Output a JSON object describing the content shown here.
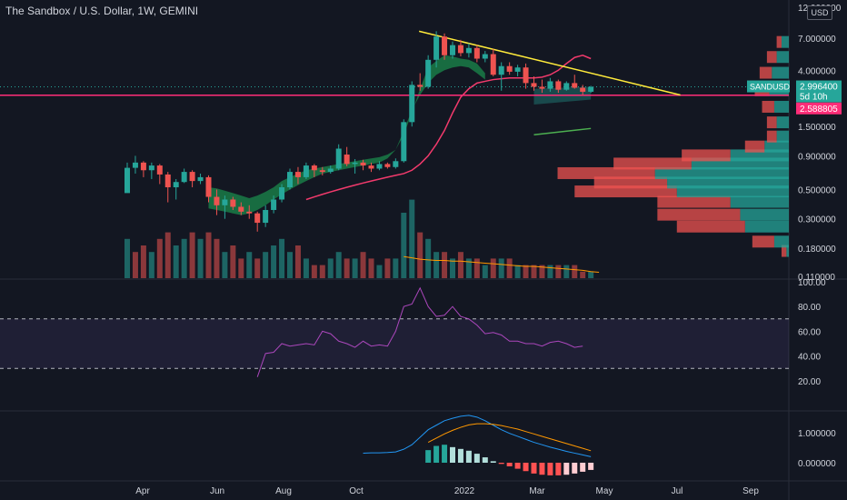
{
  "header": {
    "title": "The Sandbox / U.S. Dollar, 1W, GEMINI",
    "currency": "USD"
  },
  "colors": {
    "up": "#26a69a",
    "down": "#ef5350",
    "trendline": "#ffeb3b",
    "support": "#ff2d78",
    "ema_fast": "#f23a6c",
    "rsi": "#ab47bc",
    "macd": "#2196f3",
    "signal": "#ff9800"
  },
  "chart_data": [
    {
      "type": "candlestick",
      "scale": "log",
      "price_axis": {
        "ticks": [
          0.11,
          0.18,
          0.3,
          0.5,
          0.9,
          1.5,
          4.0,
          7.0
        ],
        "tick_labels": [
          "0.110000",
          "0.180000",
          "0.300000",
          "0.500000",
          "0.900000",
          "1.500000",
          "4.000000",
          "7.000000"
        ],
        "top_label": "12.000000"
      },
      "x_axis_labels": [
        "Apr",
        "Jun",
        "Aug",
        "Oct",
        "2022",
        "Mar",
        "May",
        "Jul",
        "Sep"
      ],
      "symbol_badge": {
        "label": "SANDUSD",
        "price": "2.996400",
        "countdown": "5d 10h"
      },
      "support_badge": "2.588805",
      "support_level": 2.588805,
      "candles": [
        [
          0.47,
          0.8,
          0.48,
          0.73
        ],
        [
          0.73,
          0.9,
          0.66,
          0.8
        ],
        [
          0.8,
          0.82,
          0.62,
          0.7
        ],
        [
          0.7,
          0.8,
          0.6,
          0.76
        ],
        [
          0.76,
          0.78,
          0.55,
          0.65
        ],
        [
          0.65,
          0.68,
          0.4,
          0.52
        ],
        [
          0.52,
          0.6,
          0.42,
          0.57
        ],
        [
          0.57,
          0.72,
          0.56,
          0.68
        ],
        [
          0.68,
          0.7,
          0.52,
          0.58
        ],
        [
          0.58,
          0.66,
          0.55,
          0.62
        ],
        [
          0.62,
          0.64,
          0.4,
          0.44
        ],
        [
          0.44,
          0.5,
          0.32,
          0.38
        ],
        [
          0.38,
          0.45,
          0.3,
          0.42
        ],
        [
          0.42,
          0.44,
          0.35,
          0.37
        ],
        [
          0.37,
          0.4,
          0.32,
          0.34
        ],
        [
          0.34,
          0.38,
          0.3,
          0.33
        ],
        [
          0.33,
          0.34,
          0.24,
          0.28
        ],
        [
          0.28,
          0.38,
          0.26,
          0.35
        ],
        [
          0.35,
          0.45,
          0.33,
          0.42
        ],
        [
          0.42,
          0.55,
          0.4,
          0.52
        ],
        [
          0.52,
          0.72,
          0.5,
          0.68
        ],
        [
          0.68,
          0.74,
          0.55,
          0.62
        ],
        [
          0.62,
          0.8,
          0.6,
          0.76
        ],
        [
          0.76,
          0.78,
          0.62,
          0.7
        ],
        [
          0.7,
          0.74,
          0.64,
          0.68
        ],
        [
          0.68,
          0.76,
          0.66,
          0.72
        ],
        [
          0.72,
          1.1,
          0.7,
          1.02
        ],
        [
          0.92,
          1.05,
          0.75,
          0.78
        ],
        [
          0.78,
          0.85,
          0.66,
          0.8
        ],
        [
          0.8,
          0.84,
          0.7,
          0.76
        ],
        [
          0.76,
          0.8,
          0.68,
          0.72
        ],
        [
          0.72,
          0.82,
          0.7,
          0.78
        ],
        [
          0.78,
          0.8,
          0.72,
          0.74
        ],
        [
          0.74,
          0.86,
          0.72,
          0.82
        ],
        [
          0.82,
          1.7,
          0.8,
          1.62
        ],
        [
          1.62,
          3.3,
          1.5,
          3.1
        ],
        [
          3.1,
          3.8,
          2.8,
          3.0
        ],
        [
          3.0,
          5.2,
          2.9,
          4.8
        ],
        [
          4.8,
          7.9,
          4.2,
          7.2
        ],
        [
          7.2,
          7.6,
          4.8,
          5.2
        ],
        [
          5.2,
          6.6,
          4.9,
          6.2
        ],
        [
          6.2,
          6.8,
          5.1,
          5.4
        ],
        [
          5.4,
          6.4,
          5.0,
          5.9
        ],
        [
          5.9,
          6.2,
          4.6,
          4.9
        ],
        [
          4.9,
          5.6,
          4.6,
          5.3
        ],
        [
          5.3,
          5.8,
          3.6,
          3.7
        ],
        [
          3.7,
          4.6,
          2.8,
          4.3
        ],
        [
          4.3,
          4.6,
          3.7,
          3.9
        ],
        [
          3.9,
          4.4,
          3.6,
          4.2
        ],
        [
          4.2,
          4.5,
          2.9,
          3.2
        ],
        [
          3.2,
          3.6,
          2.8,
          3.0
        ],
        [
          3.0,
          3.4,
          2.7,
          2.9
        ],
        [
          2.9,
          3.5,
          2.75,
          3.3
        ],
        [
          3.3,
          3.4,
          2.7,
          2.85
        ],
        [
          2.85,
          3.3,
          2.8,
          3.2
        ],
        [
          3.2,
          3.7,
          2.9,
          2.95
        ],
        [
          2.95,
          3.1,
          2.6,
          2.75
        ],
        [
          2.75,
          3.05,
          2.7,
          2.996
        ]
      ],
      "overlays": {
        "trendline": [
          [
            7.9,
            37
          ],
          [
            2.6,
            68
          ]
        ],
        "ema_fast": [
          0.42,
          0.44,
          0.46,
          0.48,
          0.5,
          0.52,
          0.54,
          0.56,
          0.58,
          0.6,
          0.62,
          0.64,
          0.66,
          0.7,
          0.78,
          0.9,
          1.1,
          1.4,
          1.9,
          2.5,
          2.9,
          3.2,
          3.3,
          3.4,
          3.45,
          3.5,
          3.5,
          3.5,
          3.5,
          3.55,
          3.7,
          4.0,
          4.5,
          5.0,
          5.2,
          4.9
        ],
        "ema_fast_start": 22,
        "ribbon_upper_start": 10,
        "ribbon_upper": [
          0.52,
          0.51,
          0.49,
          0.47,
          0.45,
          0.43,
          0.45,
          0.48,
          0.52,
          0.58,
          0.62,
          0.66,
          0.7,
          0.72,
          0.74,
          0.76,
          0.78,
          0.8,
          0.82,
          0.84,
          0.86,
          0.88,
          0.92,
          1.0,
          1.3,
          1.9,
          2.9,
          4.2,
          4.7,
          5.2,
          5.1,
          4.9,
          4.8,
          4.5,
          3.8
        ],
        "ribbon_lower": [
          0.36,
          0.35,
          0.34,
          0.33,
          0.32,
          0.33,
          0.35,
          0.38,
          0.42,
          0.46,
          0.5,
          0.54,
          0.58,
          0.62,
          0.66,
          0.68,
          0.7,
          0.72,
          0.74,
          0.76,
          0.78,
          0.8,
          0.86,
          1.0,
          1.4,
          2.0,
          2.6,
          3.2,
          3.7,
          4.0,
          4.2,
          4.3,
          4.2,
          3.8,
          3.4
        ],
        "channel_upper": [
          1.9,
          2.0
        ],
        "channel_lower": [
          1.3,
          1.45
        ]
      },
      "volume": [
        6,
        4,
        5,
        4,
        6,
        7,
        5,
        6,
        7,
        6,
        7,
        6,
        4,
        5,
        3,
        4,
        3,
        4,
        5,
        6,
        4,
        5,
        3,
        2,
        2,
        3,
        4,
        3,
        3,
        4,
        3,
        2,
        3,
        3,
        10,
        12,
        7,
        6,
        4,
        4,
        3,
        4,
        3,
        3,
        2,
        3,
        3,
        3,
        2,
        2,
        2,
        2,
        2,
        2,
        2,
        2,
        1,
        1
      ],
      "volume_up": [
        1,
        0,
        0,
        1,
        0,
        0,
        1,
        1,
        0,
        1,
        0,
        0,
        1,
        0,
        0,
        1,
        0,
        1,
        1,
        1,
        1,
        0,
        1,
        0,
        0,
        1,
        1,
        0,
        1,
        0,
        0,
        1,
        0,
        1,
        1,
        1,
        0,
        1,
        1,
        0,
        1,
        0,
        1,
        0,
        1,
        0,
        1,
        0,
        1,
        0,
        0,
        0,
        1,
        0,
        1,
        0,
        0,
        1
      ],
      "volume_ma": [
        3.3,
        3.1,
        2.9,
        2.8,
        2.7,
        2.7,
        2.6,
        2.6,
        2.5,
        2.4,
        2.3,
        2.2,
        2.1,
        2.0,
        1.9,
        1.8,
        1.8,
        1.7,
        1.6,
        1.5,
        1.4,
        1.3,
        1.2,
        1.0,
        0.9
      ],
      "volume_ma_start": 34,
      "volume_profile": [
        {
          "price": 0.17,
          "up": 0.01,
          "down": 0.02
        },
        {
          "price": 0.2,
          "up": 0.06,
          "down": 0.09
        },
        {
          "price": 0.26,
          "up": 0.18,
          "down": 0.28
        },
        {
          "price": 0.32,
          "up": 0.2,
          "down": 0.34
        },
        {
          "price": 0.4,
          "up": 0.24,
          "down": 0.3
        },
        {
          "price": 0.48,
          "up": 0.46,
          "down": 0.42
        },
        {
          "price": 0.56,
          "up": 0.5,
          "down": 0.3
        },
        {
          "price": 0.66,
          "up": 0.55,
          "down": 0.4
        },
        {
          "price": 0.78,
          "up": 0.4,
          "down": 0.32
        },
        {
          "price": 0.9,
          "up": 0.24,
          "down": 0.2
        },
        {
          "price": 1.05,
          "up": 0.1,
          "down": 0.08
        },
        {
          "price": 1.25,
          "up": 0.05,
          "down": 0.04
        },
        {
          "price": 1.6,
          "up": 0.05,
          "down": 0.04
        },
        {
          "price": 2.1,
          "up": 0.06,
          "down": 0.05
        },
        {
          "price": 2.8,
          "up": 0.08,
          "down": 0.06
        },
        {
          "price": 3.8,
          "up": 0.07,
          "down": 0.05
        },
        {
          "price": 5.0,
          "up": 0.05,
          "down": 0.04
        },
        {
          "price": 6.5,
          "up": 0.03,
          "down": 0.02
        }
      ]
    },
    {
      "type": "line",
      "name_key": "rsi",
      "y_axis_labels": [
        "100.00",
        "80.00",
        "60.00",
        "40.00",
        "20.00"
      ],
      "y_ticks": [
        100,
        80,
        60,
        40,
        20
      ],
      "band": [
        30,
        70
      ],
      "start_index": 16,
      "values": [
        23,
        42,
        43,
        50,
        48,
        49,
        50,
        49,
        60,
        58,
        52,
        50,
        47,
        52,
        48,
        49,
        48,
        60,
        80,
        82,
        95,
        80,
        72,
        73,
        80,
        72,
        70,
        65,
        58,
        59,
        57,
        52,
        52,
        50,
        50,
        48,
        51,
        52,
        50,
        47,
        48
      ]
    },
    {
      "type": "line",
      "name_key": "macd",
      "y_axis_labels": [
        "1.000000",
        "0.000000"
      ],
      "y_ticks": [
        1.0,
        0.0
      ],
      "start_index": 29,
      "macd": [
        0.32,
        0.33,
        0.33,
        0.34,
        0.36,
        0.45,
        0.6,
        0.85,
        1.1,
        1.25,
        1.4,
        1.48,
        1.55,
        1.58,
        1.52,
        1.4,
        1.25,
        1.1,
        0.98,
        0.88,
        0.78,
        0.68,
        0.6,
        0.52,
        0.45,
        0.38,
        0.32,
        0.26,
        0.2
      ],
      "signal": [
        null,
        null,
        null,
        null,
        null,
        null,
        null,
        null,
        0.68,
        0.82,
        0.96,
        1.08,
        1.18,
        1.26,
        1.3,
        1.3,
        1.28,
        1.24,
        1.18,
        1.12,
        1.04,
        0.96,
        0.88,
        0.8,
        0.72,
        0.64,
        0.56,
        0.48,
        0.4
      ],
      "histogram": [
        0,
        0,
        0,
        0,
        0,
        0,
        0,
        0,
        0.42,
        0.56,
        0.6,
        0.52,
        0.46,
        0.4,
        0.3,
        0.18,
        0.05,
        -0.04,
        -0.12,
        -0.2,
        -0.28,
        -0.36,
        -0.4,
        -0.42,
        -0.42,
        -0.4,
        -0.36,
        -0.3,
        -0.24
      ]
    }
  ]
}
